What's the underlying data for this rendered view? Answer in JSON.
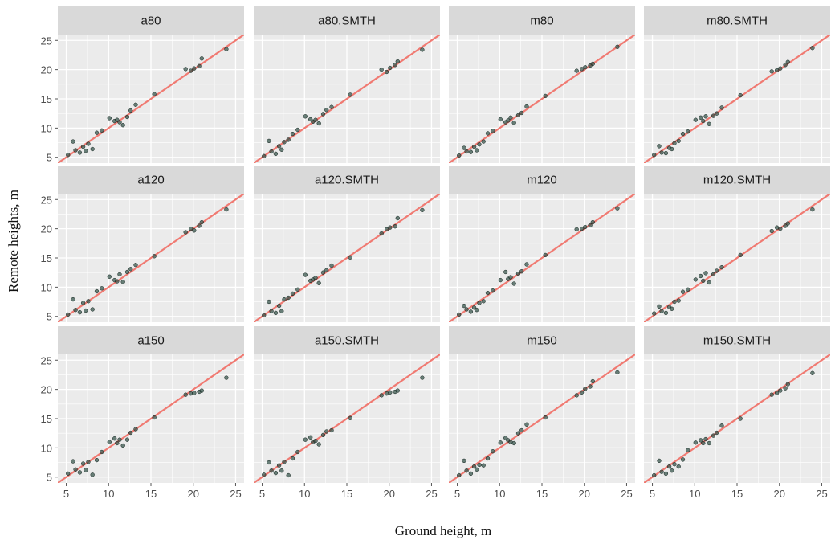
{
  "chart_data": {
    "type": "scatter",
    "xlabel": "Ground height, m",
    "ylabel": "Remote heights, m",
    "xlim": [
      4,
      26
    ],
    "ylim": [
      4,
      26
    ],
    "x_ticks": [
      5,
      10,
      15,
      20,
      25
    ],
    "y_ticks": [
      5,
      10,
      15,
      20,
      25
    ],
    "grid": true,
    "reference_line": {
      "slope": 1,
      "intercept": 0
    },
    "colors": {
      "panel_bg": "#ebebeb",
      "strip_bg": "#d9d9d9",
      "grid": "#ffffff",
      "line": "#f07a72",
      "point": "#2f4f44"
    },
    "ground_x": [
      5.2,
      5.8,
      6.1,
      6.6,
      7.0,
      7.3,
      7.6,
      8.1,
      8.6,
      9.2,
      10.1,
      10.7,
      11.0,
      11.3,
      11.7,
      12.2,
      12.6,
      13.2,
      15.4,
      19.1,
      19.7,
      20.1,
      20.7,
      21.0,
      23.9
    ],
    "panels": [
      {
        "title": "a80",
        "y": [
          5.4,
          7.7,
          6.2,
          5.8,
          6.8,
          6.1,
          7.3,
          6.4,
          9.2,
          9.6,
          11.7,
          11.2,
          11.4,
          11.0,
          10.5,
          11.9,
          13.0,
          14.0,
          15.8,
          20.1,
          19.8,
          20.2,
          20.6,
          21.9,
          23.5
        ]
      },
      {
        "title": "a80.SMTH",
        "y": [
          5.2,
          7.8,
          6.0,
          5.6,
          6.9,
          6.3,
          7.6,
          8.0,
          9.0,
          9.7,
          12.0,
          11.5,
          11.1,
          11.4,
          10.8,
          12.4,
          13.1,
          13.6,
          15.7,
          20.0,
          19.6,
          20.3,
          20.8,
          21.4,
          23.4
        ]
      },
      {
        "title": "m80",
        "y": [
          5.3,
          6.6,
          6.0,
          5.9,
          6.8,
          6.2,
          7.2,
          7.7,
          9.1,
          9.5,
          11.5,
          11.0,
          11.3,
          11.8,
          10.9,
          12.2,
          12.6,
          13.7,
          15.5,
          19.8,
          20.1,
          20.4,
          20.7,
          21.0,
          23.9
        ]
      },
      {
        "title": "m80.SMTH",
        "y": [
          5.4,
          6.9,
          5.8,
          5.7,
          6.6,
          6.4,
          7.4,
          7.8,
          9.0,
          9.4,
          11.4,
          11.8,
          11.2,
          12.0,
          10.7,
          12.1,
          12.5,
          13.5,
          15.6,
          19.7,
          19.9,
          20.2,
          20.8,
          21.3,
          23.7
        ]
      },
      {
        "title": "a120",
        "y": [
          5.3,
          7.9,
          6.1,
          5.7,
          7.3,
          6.0,
          7.6,
          6.2,
          9.3,
          9.8,
          11.8,
          11.2,
          11.0,
          12.2,
          10.9,
          12.6,
          13.1,
          13.8,
          15.3,
          19.4,
          20.0,
          19.7,
          20.5,
          21.1,
          23.3
        ]
      },
      {
        "title": "a120.SMTH",
        "y": [
          5.2,
          7.5,
          5.9,
          5.6,
          6.8,
          5.9,
          7.9,
          8.2,
          8.9,
          9.6,
          12.1,
          11.1,
          11.3,
          11.6,
          10.7,
          12.5,
          12.9,
          13.7,
          15.1,
          19.2,
          19.9,
          20.2,
          20.4,
          21.8,
          23.2
        ]
      },
      {
        "title": "m120",
        "y": [
          5.3,
          6.8,
          6.2,
          5.8,
          6.5,
          6.1,
          7.3,
          7.6,
          9.0,
          9.4,
          11.2,
          12.6,
          11.4,
          11.7,
          10.6,
          12.3,
          12.7,
          13.9,
          15.5,
          19.9,
          20.0,
          20.3,
          20.6,
          21.1,
          23.5
        ]
      },
      {
        "title": "m120.SMTH",
        "y": [
          5.5,
          6.7,
          5.9,
          5.6,
          6.6,
          6.3,
          7.5,
          7.7,
          9.2,
          9.6,
          11.3,
          11.9,
          11.1,
          12.4,
          10.8,
          12.2,
          12.8,
          13.4,
          15.5,
          19.6,
          20.2,
          20.0,
          20.5,
          20.9,
          23.3
        ]
      },
      {
        "title": "a150",
        "y": [
          5.6,
          7.7,
          6.3,
          5.8,
          7.3,
          6.2,
          7.6,
          5.4,
          7.9,
          9.3,
          11.0,
          11.6,
          10.8,
          11.4,
          10.4,
          11.4,
          12.6,
          13.2,
          15.2,
          19.1,
          19.3,
          19.4,
          19.6,
          19.8,
          22.0
        ]
      },
      {
        "title": "a150.SMTH",
        "y": [
          5.4,
          7.5,
          6.1,
          5.7,
          7.0,
          6.1,
          7.6,
          5.3,
          8.2,
          9.3,
          11.4,
          11.8,
          11.0,
          11.2,
          10.6,
          12.2,
          12.8,
          13.0,
          15.1,
          19.0,
          19.3,
          19.5,
          19.6,
          19.8,
          22.0
        ]
      },
      {
        "title": "m150",
        "y": [
          5.3,
          7.8,
          6.1,
          5.6,
          6.8,
          6.3,
          7.1,
          7.0,
          8.2,
          9.4,
          10.9,
          11.7,
          11.3,
          11.0,
          10.8,
          12.5,
          13.0,
          14.0,
          15.2,
          19.0,
          19.5,
          20.1,
          20.5,
          21.4,
          22.9
        ]
      },
      {
        "title": "m150.SMTH",
        "y": [
          5.3,
          7.8,
          5.9,
          5.6,
          6.8,
          6.1,
          7.2,
          6.8,
          8.0,
          9.6,
          10.9,
          11.3,
          10.8,
          11.5,
          10.8,
          12.1,
          12.6,
          13.8,
          15.0,
          19.1,
          19.4,
          19.8,
          20.2,
          20.9,
          22.8
        ]
      }
    ]
  }
}
